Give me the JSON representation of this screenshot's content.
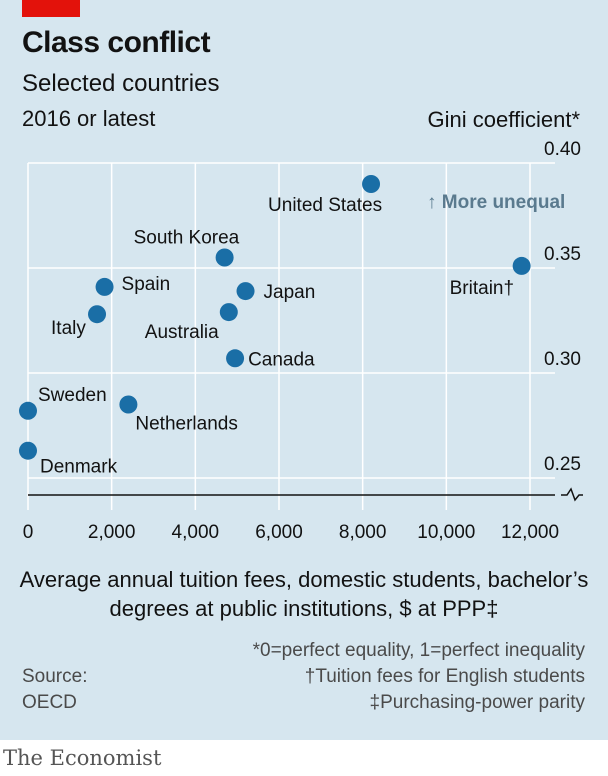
{
  "header": {
    "title": "Class conflict",
    "subtitle": "Selected countries",
    "subtitle2": "2016 or latest",
    "y_label": "Gini coefficient*"
  },
  "x_label": "Average annual tuition fees, domestic students, bachelor’s degrees at public institutions, $ at PPP‡",
  "annotation": "↑ More unequal",
  "notes": {
    "note1": "*0=perfect equality, 1=perfect inequality",
    "note2": "†Tuition fees for English students",
    "note3": "‡Purchasing-power parity",
    "source_label": "Source:",
    "source_value": "OECD"
  },
  "brand": "The Economist",
  "colors": {
    "background": "#d6e6ef",
    "dot": "#1a6ea6",
    "grid": "#ffffff",
    "accent": "#e3120b",
    "annotation": "#5a7a8e"
  },
  "chart_data": {
    "type": "scatter",
    "title": "Class conflict",
    "subtitle": "Selected countries, 2016 or latest",
    "xlabel": "Average annual tuition fees, domestic students, bachelor’s degrees at public institutions, $ at PPP‡",
    "ylabel": "Gini coefficient*",
    "xlim": [
      0,
      12000
    ],
    "ylim": [
      0.25,
      0.4
    ],
    "x_ticks": [
      "0",
      "2,000",
      "4,000",
      "6,000",
      "8,000",
      "10,000",
      "12,000"
    ],
    "y_ticks": [
      "0.25",
      "0.30",
      "0.35",
      "0.40"
    ],
    "y_axis_break": true,
    "grid": true,
    "points": [
      {
        "label": "United States",
        "x": 8200,
        "y": 0.39
      },
      {
        "label": "Britain†",
        "x": 11800,
        "y": 0.351
      },
      {
        "label": "South Korea",
        "x": 4700,
        "y": 0.355
      },
      {
        "label": "Japan",
        "x": 5200,
        "y": 0.339
      },
      {
        "label": "Spain",
        "x": 1830,
        "y": 0.341
      },
      {
        "label": "Australia",
        "x": 4800,
        "y": 0.329
      },
      {
        "label": "Italy",
        "x": 1650,
        "y": 0.328
      },
      {
        "label": "Canada",
        "x": 4950,
        "y": 0.307
      },
      {
        "label": "Sweden",
        "x": 0,
        "y": 0.282
      },
      {
        "label": "Netherlands",
        "x": 2400,
        "y": 0.285
      },
      {
        "label": "Denmark",
        "x": 0,
        "y": 0.263
      }
    ]
  }
}
